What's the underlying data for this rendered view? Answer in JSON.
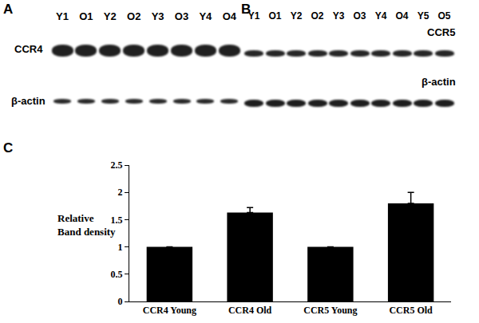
{
  "panel_labels": [
    "A",
    "B",
    "C"
  ],
  "blots": [
    {
      "lanes": [
        "Y1",
        "O1",
        "Y2",
        "O2",
        "Y3",
        "O3",
        "Y4",
        "O4"
      ],
      "bands": [
        "CCR4",
        "β-actin"
      ]
    },
    {
      "lanes": [
        "Y1",
        "O1",
        "Y2",
        "O2",
        "Y3",
        "O3",
        "Y4",
        "O4",
        "Y5",
        "O5"
      ],
      "bands": [
        "CCR5",
        "β-actin"
      ]
    }
  ],
  "chart_data": {
    "type": "bar",
    "categories": [
      "CCR4 Young",
      "CCR4 Old",
      "CCR5 Young",
      "CCR5 Old"
    ],
    "values": [
      1,
      1.63,
      1,
      1.8
    ],
    "errors": [
      0,
      0.09,
      0,
      0.2
    ],
    "ylabel": "Relative Band density",
    "color": "#000000",
    "ylim": [
      0,
      2.5
    ],
    "yticks": [
      0,
      0.5,
      1,
      1.5,
      2,
      2.5
    ],
    "grid": false
  }
}
